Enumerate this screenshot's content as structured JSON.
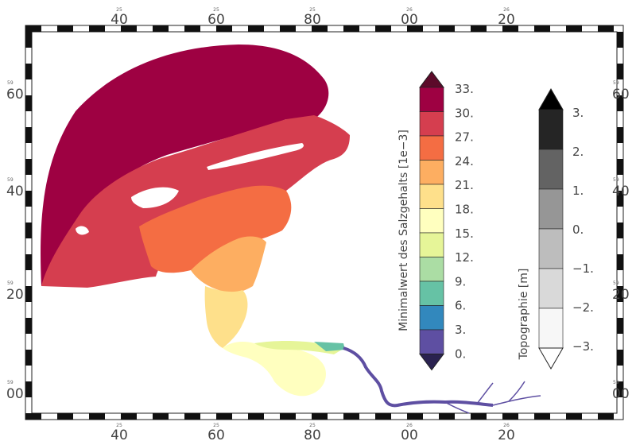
{
  "map": {
    "axes": {
      "top": [
        {
          "deg": "25",
          "min": "40"
        },
        {
          "deg": "25",
          "min": "60"
        },
        {
          "deg": "25",
          "min": "80"
        },
        {
          "deg": "26",
          "min": "00"
        },
        {
          "deg": "26",
          "min": "20"
        }
      ],
      "bottom": [
        {
          "deg": "25",
          "min": "40"
        },
        {
          "deg": "25",
          "min": "60"
        },
        {
          "deg": "25",
          "min": "80"
        },
        {
          "deg": "26",
          "min": "00"
        },
        {
          "deg": "26",
          "min": "20"
        }
      ],
      "left": [
        {
          "deg": "59",
          "min": "60"
        },
        {
          "deg": "59",
          "min": "40"
        },
        {
          "deg": "59",
          "min": "20"
        },
        {
          "deg": "59",
          "min": "00"
        }
      ],
      "right": [
        {
          "deg": "59",
          "min": "60"
        },
        {
          "deg": "59",
          "min": "40"
        },
        {
          "deg": "59",
          "min": "20"
        },
        {
          "deg": "59",
          "min": "00"
        }
      ],
      "unit_small": "200"
    },
    "salinity_colorbar": {
      "title": "Minimalwert des Salzgehalts [1e−3]",
      "levels": [
        "33.",
        "30.",
        "27.",
        "24.",
        "21.",
        "18.",
        "15.",
        "12.",
        "9.",
        "6.",
        "3.",
        "0."
      ],
      "colors": [
        "#9e0142",
        "#d53e4f",
        "#f46d43",
        "#fdae61",
        "#fee08b",
        "#ffffbf",
        "#e6f598",
        "#abdda4",
        "#66c2a5",
        "#3288bd",
        "#5e4fa2"
      ],
      "over_color": "#5c0a2a",
      "under_color": "#2a2250"
    },
    "topo_colorbar": {
      "title": "Topographie [m]",
      "levels": [
        "3.",
        "2.",
        "1.",
        "0.",
        "−1.",
        "−2.",
        "−3."
      ],
      "colors": [
        "#252525",
        "#636363",
        "#969696",
        "#bdbdbd",
        "#d9d9d9",
        "#f7f7f7"
      ],
      "over_color": "#000000",
      "under_color": "#ffffff"
    }
  }
}
